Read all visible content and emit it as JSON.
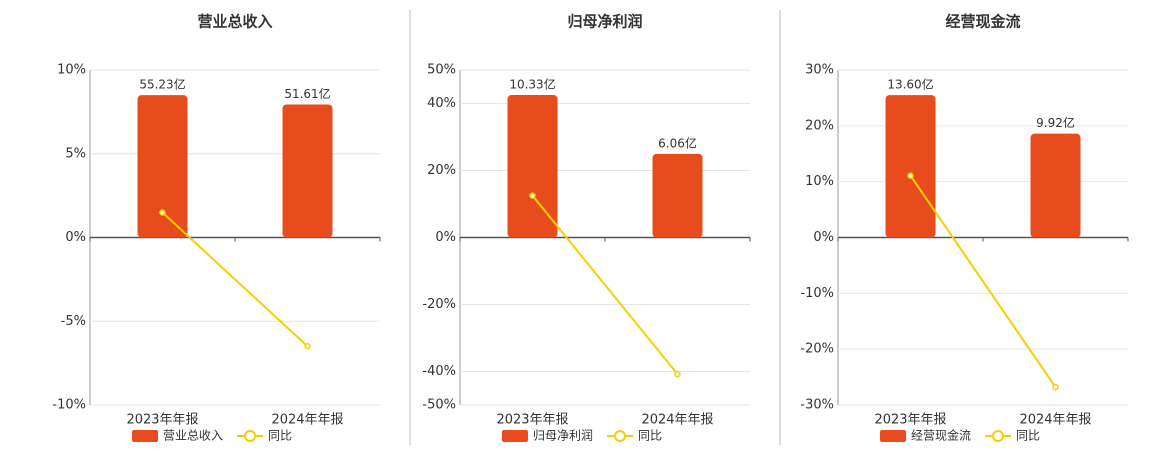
{
  "chart_data": [
    {
      "type": "bar",
      "title": "营业总收入",
      "categories": [
        "2023年年报",
        "2024年年报"
      ],
      "series": [
        {
          "name": "营业总收入",
          "color": "#e84c1c",
          "axis": "y2",
          "values": [
            55.23,
            51.61
          ],
          "value_labels": [
            "55.23亿",
            "51.61亿"
          ]
        },
        {
          "name": "同比",
          "color": "#f5d000",
          "values": [
            1.49,
            -6.49
          ]
        }
      ],
      "ylim": [
        -10,
        10
      ],
      "yticks": [
        {
          "value": -10,
          "label": "-10%"
        },
        {
          "value": -5,
          "label": "-5%"
        },
        {
          "value": 0,
          "label": "0%"
        },
        {
          "value": 5,
          "label": "5%"
        },
        {
          "value": 10,
          "label": "10%"
        }
      ],
      "y2lim": [
        -65,
        65
      ],
      "grid": true
    },
    {
      "type": "bar",
      "title": "归母净利润",
      "categories": [
        "2023年年报",
        "2024年年报"
      ],
      "series": [
        {
          "name": "归母净利润",
          "color": "#e84c1c",
          "axis": "y2",
          "values": [
            10.33,
            6.06
          ],
          "value_labels": [
            "10.33亿",
            "6.06亿"
          ]
        },
        {
          "name": "同比",
          "color": "#f5d000",
          "values": [
            12.5,
            -40.8
          ]
        }
      ],
      "ylim": [
        -50,
        50
      ],
      "yticks": [
        {
          "value": -50,
          "label": "-50%"
        },
        {
          "value": -40,
          "label": "-40%"
        },
        {
          "value": -20,
          "label": "-20%"
        },
        {
          "value": 0,
          "label": "0%"
        },
        {
          "value": 20,
          "label": "20%"
        },
        {
          "value": 40,
          "label": "40%"
        },
        {
          "value": 50,
          "label": "50%"
        }
      ],
      "y2lim": [
        -12.14,
        12.14
      ],
      "grid": true
    },
    {
      "type": "bar",
      "title": "经营现金流",
      "categories": [
        "2023年年报",
        "2024年年报"
      ],
      "series": [
        {
          "name": "经营现金流",
          "color": "#e84c1c",
          "axis": "y2",
          "values": [
            13.6,
            9.92
          ],
          "value_labels": [
            "13.60亿",
            "9.92亿"
          ]
        },
        {
          "name": "同比",
          "color": "#f5d000",
          "values": [
            11.07,
            -26.8
          ]
        }
      ],
      "ylim": [
        -30,
        30
      ],
      "yticks": [
        {
          "value": -30,
          "label": "-30%"
        },
        {
          "value": -20,
          "label": "-20%"
        },
        {
          "value": -10,
          "label": "-10%"
        },
        {
          "value": 0,
          "label": "0%"
        },
        {
          "value": 10,
          "label": "10%"
        },
        {
          "value": 20,
          "label": "20%"
        },
        {
          "value": 30,
          "label": "30%"
        }
      ],
      "y2lim": [
        -16,
        16
      ],
      "grid": true
    }
  ]
}
